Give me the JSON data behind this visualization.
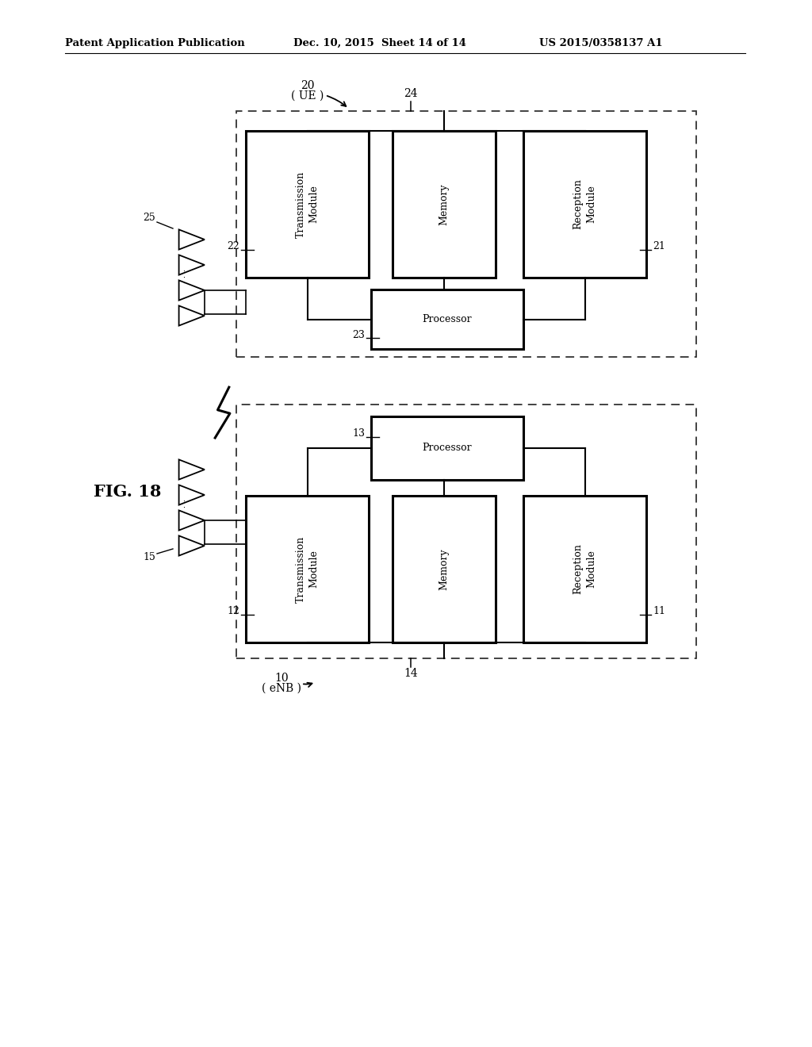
{
  "title_left": "Patent Application Publication",
  "title_mid": "Dec. 10, 2015  Sheet 14 of 14",
  "title_right": "US 2015/0358137 A1",
  "fig_label": "FIG. 18",
  "background": "#ffffff"
}
